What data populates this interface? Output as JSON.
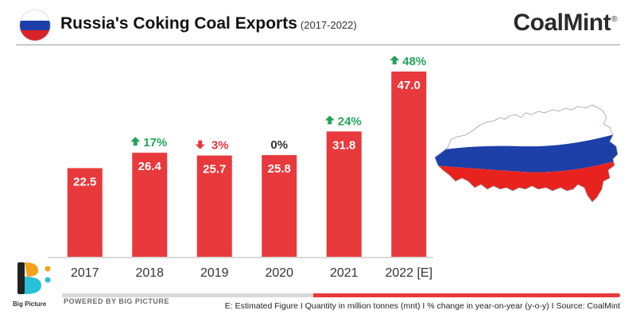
{
  "header": {
    "title": "Russia's Coking Coal Exports",
    "subtitle": "(2017-2022)",
    "brand": "CoalMint",
    "brand_mark": "®"
  },
  "chart_data": {
    "type": "bar",
    "categories": [
      "2017",
      "2018",
      "2019",
      "2020",
      "2021",
      "2022 [E]"
    ],
    "values": [
      22.5,
      26.4,
      25.7,
      25.8,
      31.8,
      47.0
    ],
    "value_labels": [
      "22.5",
      "26.4",
      "25.7",
      "25.8",
      "31.8",
      "47.0"
    ],
    "changes": [
      null,
      {
        "direction": "up",
        "text": "17%"
      },
      {
        "direction": "down",
        "text": "3%"
      },
      {
        "direction": "none",
        "text": "0%"
      },
      {
        "direction": "up",
        "text": "24%"
      },
      {
        "direction": "up",
        "text": "48%"
      }
    ],
    "ylim": [
      0,
      50
    ],
    "grid": false,
    "bar_color": "#e8393c",
    "up_color": "#22a55b",
    "down_color": "#e8393c",
    "flat_color": "#333333"
  },
  "branding": {
    "big_picture_label": "Big Picture",
    "powered_by": "POWERED BY BIG PICTURE"
  },
  "footer": {
    "note": "E: Estimated Figure  I  Quantity in million tonnes (mnt)  I  % change in year-on-year (y-o-y)  I  Source: CoalMint"
  },
  "colors": {
    "russia_white": "#ffffff",
    "russia_blue": "#1c3fa8",
    "russia_red": "#e8231f"
  }
}
